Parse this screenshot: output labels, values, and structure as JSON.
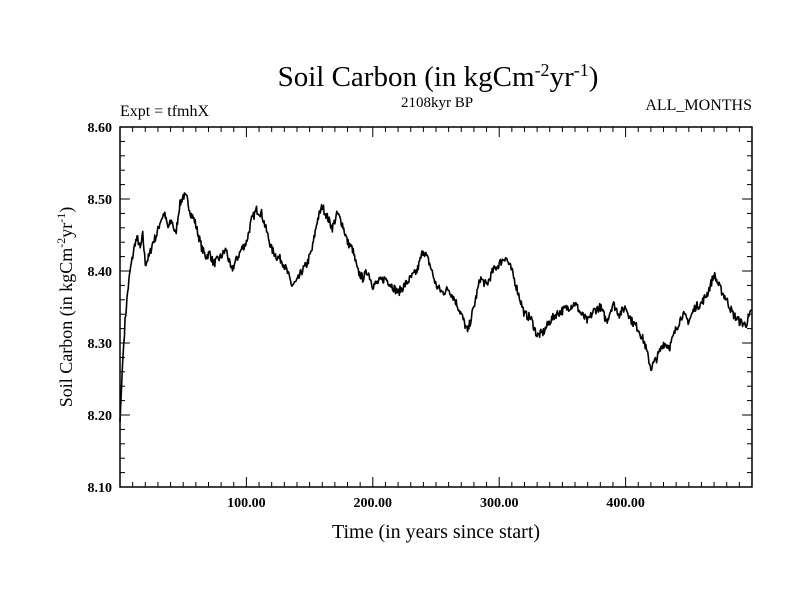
{
  "chart_data": {
    "type": "line",
    "title": {
      "base": "Soil Carbon (in kgCm",
      "sup1": "-2",
      "mid": "yr",
      "sup2": "-1",
      "end": ")"
    },
    "subtitle_left": "Expt = tfmhX",
    "subtitle_center": "2108kyr BP",
    "subtitle_right": "ALL_MONTHS",
    "xlabel": "Time (in years since start)",
    "ylabel": {
      "base": "Soil Carbon (in kgCm",
      "sup1": "-2",
      "mid": "yr",
      "sup2": "-1",
      "end": ")"
    },
    "xlim": [
      0,
      500
    ],
    "ylim": [
      8.1,
      8.6
    ],
    "xticks": [
      {
        "value": 100,
        "label": "100.00"
      },
      {
        "value": 200,
        "label": "200.00"
      },
      {
        "value": 300,
        "label": "300.00"
      },
      {
        "value": 400,
        "label": "400.00"
      }
    ],
    "yticks": [
      {
        "value": 8.1,
        "label": "8.10"
      },
      {
        "value": 8.2,
        "label": "8.20"
      },
      {
        "value": 8.3,
        "label": "8.30"
      },
      {
        "value": 8.4,
        "label": "8.40"
      },
      {
        "value": 8.5,
        "label": "8.50"
      },
      {
        "value": 8.6,
        "label": "8.60"
      }
    ],
    "grid": false,
    "series": [
      {
        "name": "Soil Carbon",
        "color": "#000000",
        "x": [
          0,
          2,
          4,
          6,
          8,
          10,
          12,
          14,
          16,
          18,
          20,
          23,
          26,
          29,
          32,
          35,
          38,
          41,
          44,
          47,
          50,
          53,
          56,
          59,
          62,
          65,
          68,
          71,
          74,
          77,
          80,
          84,
          88,
          92,
          96,
          100,
          104,
          108,
          112,
          116,
          120,
          124,
          128,
          132,
          136,
          140,
          144,
          148,
          152,
          156,
          160,
          164,
          168,
          172,
          176,
          180,
          184,
          188,
          192,
          196,
          200,
          205,
          210,
          215,
          220,
          225,
          230,
          235,
          240,
          245,
          250,
          255,
          260,
          265,
          270,
          275,
          280,
          285,
          290,
          295,
          300,
          305,
          310,
          315,
          320,
          325,
          330,
          335,
          340,
          345,
          350,
          355,
          360,
          365,
          370,
          375,
          380,
          385,
          390,
          395,
          400,
          405,
          410,
          415,
          420,
          425,
          430,
          435,
          440,
          445,
          450,
          455,
          460,
          465,
          470,
          475,
          480,
          485,
          490,
          495,
          500
        ],
        "y": [
          8.19,
          8.27,
          8.33,
          8.37,
          8.4,
          8.42,
          8.44,
          8.445,
          8.43,
          8.45,
          8.41,
          8.42,
          8.44,
          8.45,
          8.47,
          8.48,
          8.46,
          8.47,
          8.45,
          8.49,
          8.505,
          8.5,
          8.48,
          8.47,
          8.45,
          8.43,
          8.42,
          8.425,
          8.41,
          8.415,
          8.42,
          8.43,
          8.4,
          8.415,
          8.43,
          8.44,
          8.47,
          8.485,
          8.48,
          8.455,
          8.43,
          8.42,
          8.415,
          8.4,
          8.38,
          8.385,
          8.4,
          8.41,
          8.43,
          8.47,
          8.49,
          8.475,
          8.46,
          8.48,
          8.465,
          8.44,
          8.43,
          8.4,
          8.39,
          8.4,
          8.38,
          8.385,
          8.39,
          8.38,
          8.37,
          8.38,
          8.39,
          8.4,
          8.43,
          8.41,
          8.38,
          8.37,
          8.375,
          8.36,
          8.34,
          8.315,
          8.35,
          8.39,
          8.38,
          8.4,
          8.41,
          8.42,
          8.4,
          8.37,
          8.34,
          8.335,
          8.31,
          8.315,
          8.33,
          8.34,
          8.345,
          8.35,
          8.355,
          8.34,
          8.33,
          8.345,
          8.35,
          8.33,
          8.355,
          8.34,
          8.35,
          8.33,
          8.32,
          8.3,
          8.265,
          8.28,
          8.3,
          8.295,
          8.32,
          8.34,
          8.33,
          8.35,
          8.355,
          8.37,
          8.395,
          8.375,
          8.36,
          8.34,
          8.33,
          8.325,
          8.345
        ]
      }
    ]
  }
}
